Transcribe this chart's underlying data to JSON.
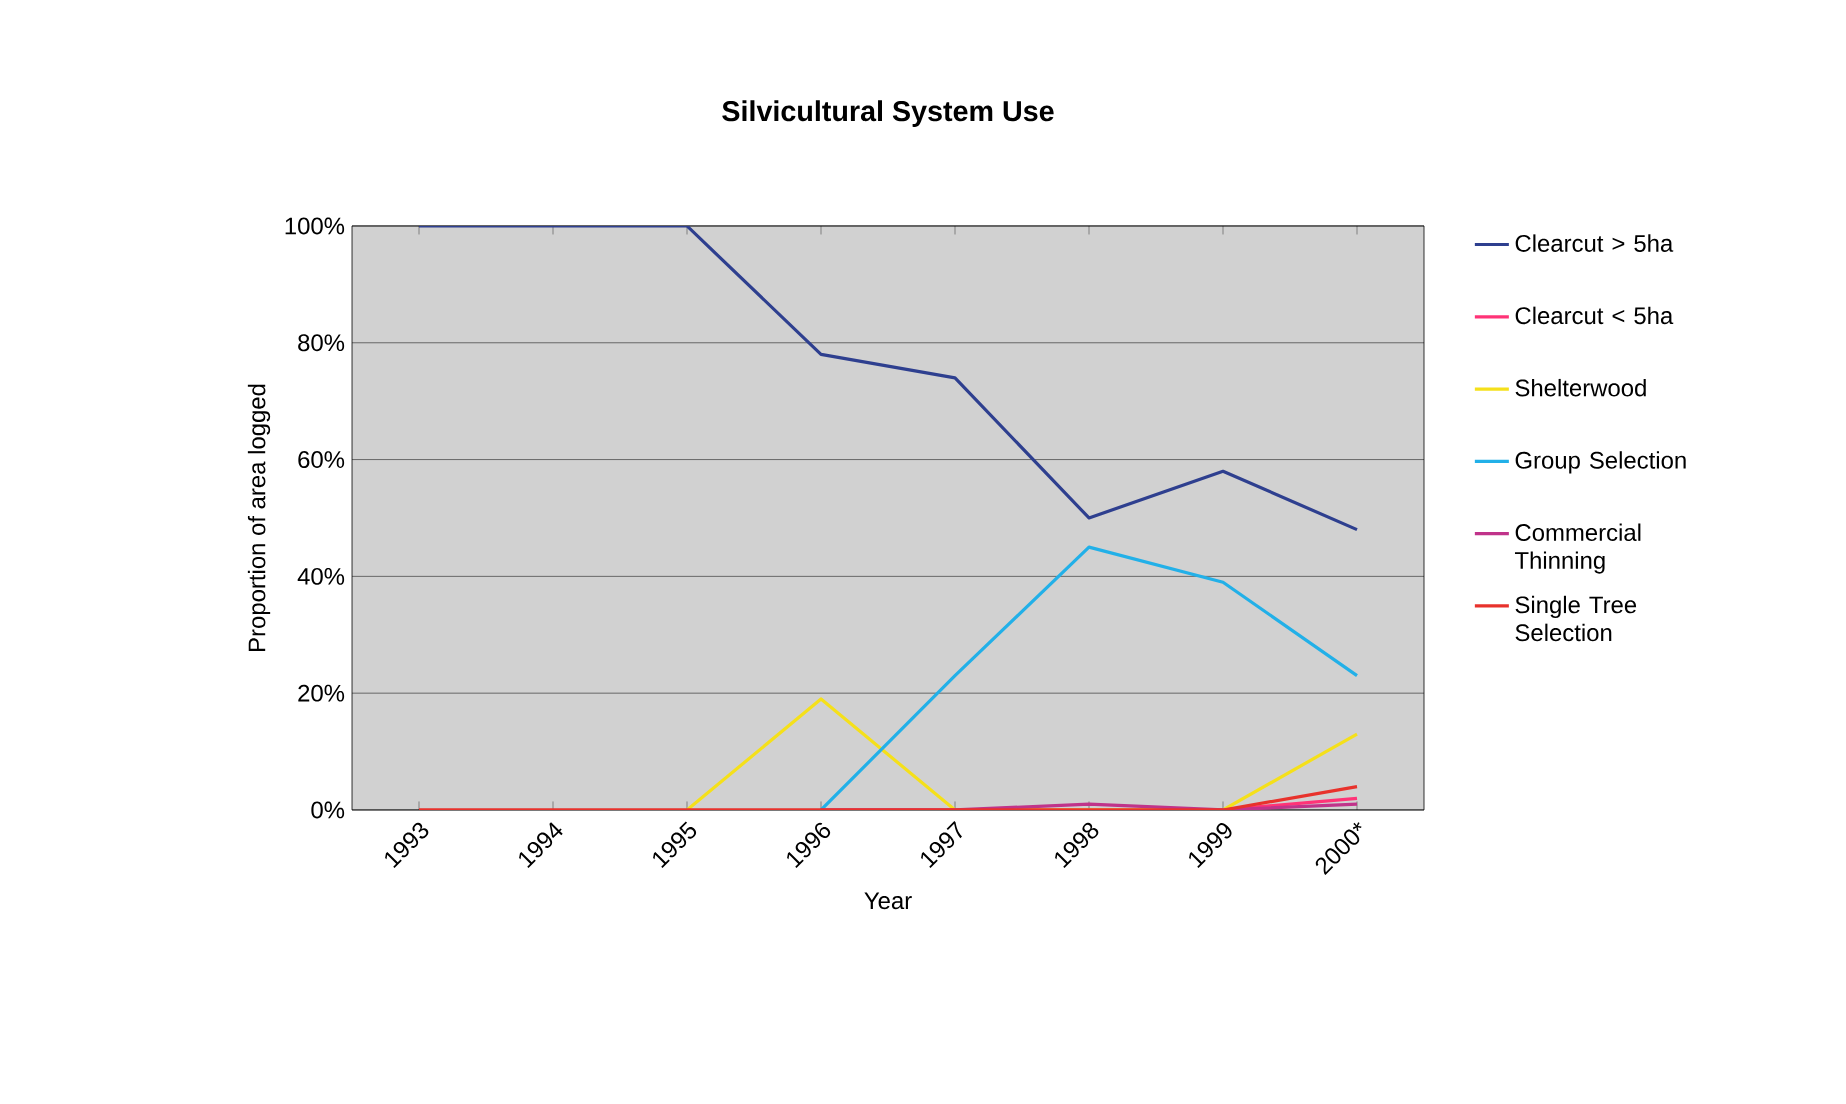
{
  "chart_data": {
    "type": "line",
    "title": "Silvicultural System Use",
    "xlabel": "Year",
    "ylabel": "Proportion of area logged",
    "categories": [
      "1993",
      "1994",
      "1995",
      "1996",
      "1997",
      "1998",
      "1999",
      "2000*"
    ],
    "series": [
      {
        "name": "Clearcut > 5ha",
        "color": "#2e3f8f",
        "values": [
          100,
          100,
          100,
          78,
          74,
          50,
          58,
          48
        ]
      },
      {
        "name": "Clearcut < 5ha",
        "color": "#ff3377",
        "values": [
          null,
          null,
          null,
          null,
          null,
          null,
          0,
          2
        ]
      },
      {
        "name": "Shelterwood",
        "color": "#f5e01a",
        "values": [
          null,
          null,
          0,
          19,
          0,
          0,
          0,
          13
        ]
      },
      {
        "name": "Group Selection",
        "color": "#22b0e8",
        "values": [
          null,
          null,
          null,
          0,
          23,
          45,
          39,
          23
        ]
      },
      {
        "name": "Commercial Thinning",
        "color": "#c0338a",
        "values": [
          null,
          null,
          null,
          0,
          0,
          1,
          0,
          1
        ]
      },
      {
        "name": "Single Tree Selection",
        "color": "#e8322c",
        "values": [
          0,
          0,
          0,
          0,
          0,
          0,
          0,
          4
        ]
      }
    ],
    "ylim": [
      0,
      100
    ],
    "yticks": [
      {
        "value": 0,
        "label": "0%"
      },
      {
        "value": 20,
        "label": "20%"
      },
      {
        "value": 40,
        "label": "40%"
      },
      {
        "value": 60,
        "label": "60%"
      },
      {
        "value": 80,
        "label": "80%"
      },
      {
        "value": 100,
        "label": "100%"
      }
    ],
    "grid": "y",
    "legend": "right",
    "marker": "none",
    "line_style": "solid"
  }
}
